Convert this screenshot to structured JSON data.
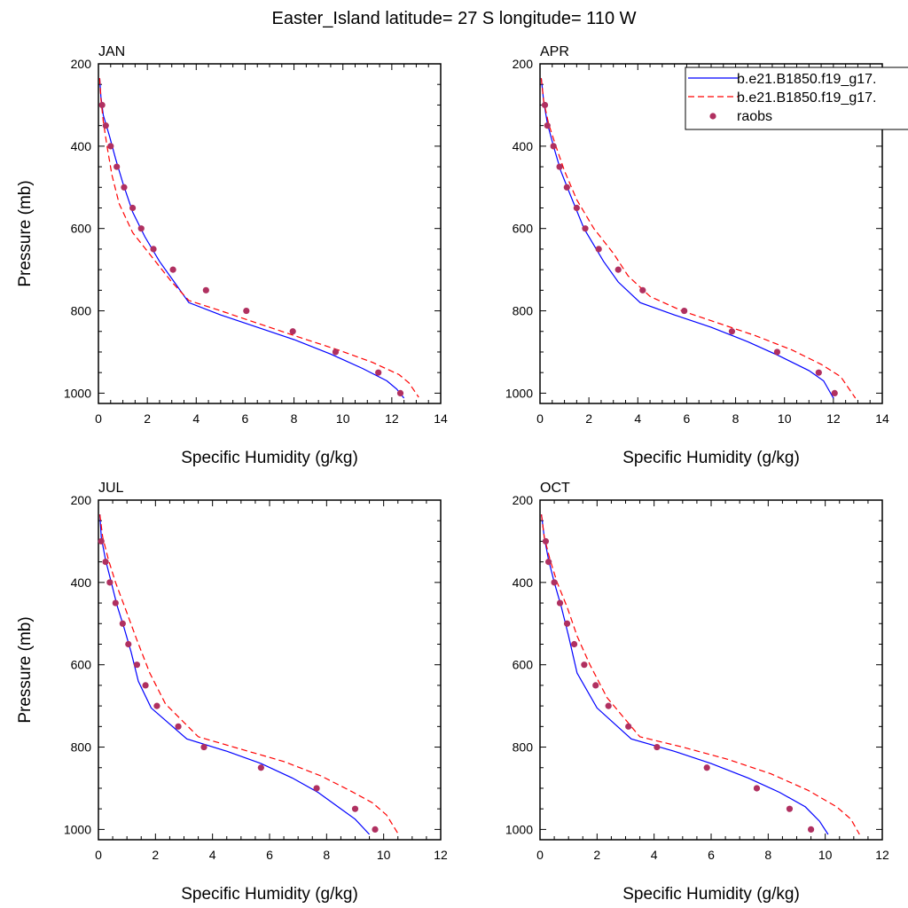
{
  "title": "Easter_Island  latitude= 27 S longitude= 110 W",
  "colors": {
    "model_a": "#0000ff",
    "model_b": "#ff0000",
    "raobs": "#b03060"
  },
  "legend": {
    "entries": [
      {
        "label": "b.e21.B1850.f19_g17.",
        "style": "solid",
        "color": "#0000ff"
      },
      {
        "label": "b.e21.B1850.f19_g17.",
        "style": "dashed",
        "color": "#ff0000"
      },
      {
        "label": "raobs",
        "style": "marker",
        "color": "#b03060"
      }
    ]
  },
  "chart_data": [
    {
      "type": "line",
      "panel": "JAN",
      "xlabel": "Specific Humidity (g/kg)",
      "ylabel": "Pressure (mb)",
      "xlim": [
        0,
        14
      ],
      "ylim": [
        200,
        1025
      ],
      "y_reversed": true,
      "x_ticks": [
        0,
        2,
        4,
        6,
        8,
        10,
        12,
        14
      ],
      "y_ticks": [
        200,
        400,
        600,
        800,
        1000
      ],
      "series": [
        {
          "name": "b.e21.B1850.f19_g17.",
          "style": "solid",
          "color": "#0000ff",
          "points": [
            [
              0.05,
              235
            ],
            [
              0.1,
              280
            ],
            [
              0.2,
              325
            ],
            [
              0.45,
              375
            ],
            [
              0.7,
              430
            ],
            [
              1.0,
              490
            ],
            [
              1.4,
              560
            ],
            [
              1.9,
              620
            ],
            [
              2.5,
              680
            ],
            [
              3.1,
              730
            ],
            [
              3.7,
              780
            ],
            [
              5.0,
              810
            ],
            [
              6.5,
              840
            ],
            [
              8.0,
              870
            ],
            [
              9.5,
              905
            ],
            [
              10.8,
              940
            ],
            [
              11.8,
              970
            ],
            [
              12.2,
              990
            ],
            [
              12.5,
              1012
            ]
          ]
        },
        {
          "name": "b.e21.B1850.f19_g17.",
          "style": "dashed",
          "color": "#ff0000",
          "points": [
            [
              0.05,
              235
            ],
            [
              0.1,
              285
            ],
            [
              0.2,
              340
            ],
            [
              0.35,
              400
            ],
            [
              0.55,
              470
            ],
            [
              0.85,
              540
            ],
            [
              1.4,
              610
            ],
            [
              2.2,
              670
            ],
            [
              3.0,
              730
            ],
            [
              3.7,
              775
            ],
            [
              5.0,
              800
            ],
            [
              6.5,
              830
            ],
            [
              8.0,
              860
            ],
            [
              9.8,
              895
            ],
            [
              11.2,
              925
            ],
            [
              12.3,
              955
            ],
            [
              12.7,
              975
            ],
            [
              13.1,
              1010
            ]
          ]
        },
        {
          "name": "raobs",
          "style": "marker",
          "color": "#b03060",
          "points": [
            [
              0.15,
              300
            ],
            [
              0.3,
              350
            ],
            [
              0.5,
              400
            ],
            [
              0.75,
              450
            ],
            [
              1.05,
              500
            ],
            [
              1.4,
              550
            ],
            [
              1.75,
              600
            ],
            [
              2.25,
              650
            ],
            [
              3.05,
              700
            ],
            [
              4.4,
              750
            ],
            [
              6.05,
              800
            ],
            [
              7.95,
              850
            ],
            [
              9.7,
              900
            ],
            [
              11.45,
              950
            ],
            [
              12.35,
              1000
            ]
          ]
        }
      ]
    },
    {
      "type": "line",
      "panel": "APR",
      "xlabel": "Specific Humidity (g/kg)",
      "ylabel": "",
      "xlim": [
        0,
        14
      ],
      "ylim": [
        200,
        1025
      ],
      "y_reversed": true,
      "x_ticks": [
        0,
        2,
        4,
        6,
        8,
        10,
        12,
        14
      ],
      "y_ticks": [
        200,
        400,
        600,
        800,
        1000
      ],
      "series": [
        {
          "name": "b.e21.B1850.f19_g17.",
          "style": "solid",
          "color": "#0000ff",
          "points": [
            [
              0.05,
              235
            ],
            [
              0.15,
              290
            ],
            [
              0.3,
              345
            ],
            [
              0.55,
              400
            ],
            [
              0.85,
              460
            ],
            [
              1.25,
              520
            ],
            [
              1.8,
              600
            ],
            [
              2.6,
              680
            ],
            [
              3.2,
              730
            ],
            [
              4.1,
              780
            ],
            [
              5.5,
              810
            ],
            [
              7.0,
              840
            ],
            [
              8.5,
              875
            ],
            [
              9.8,
              910
            ],
            [
              11.0,
              945
            ],
            [
              11.6,
              970
            ],
            [
              12.0,
              1012
            ]
          ]
        },
        {
          "name": "b.e21.B1850.f19_g17.",
          "style": "dashed",
          "color": "#ff0000",
          "points": [
            [
              0.05,
              235
            ],
            [
              0.15,
              290
            ],
            [
              0.35,
              345
            ],
            [
              0.65,
              400
            ],
            [
              1.0,
              460
            ],
            [
              1.5,
              530
            ],
            [
              2.2,
              600
            ],
            [
              3.0,
              660
            ],
            [
              3.6,
              715
            ],
            [
              4.5,
              765
            ],
            [
              5.8,
              800
            ],
            [
              7.3,
              830
            ],
            [
              8.8,
              860
            ],
            [
              10.3,
              895
            ],
            [
              11.5,
              930
            ],
            [
              12.3,
              960
            ],
            [
              12.9,
              1012
            ]
          ]
        },
        {
          "name": "raobs",
          "style": "marker",
          "color": "#b03060",
          "points": [
            [
              0.2,
              300
            ],
            [
              0.3,
              350
            ],
            [
              0.55,
              400
            ],
            [
              0.8,
              450
            ],
            [
              1.1,
              500
            ],
            [
              1.5,
              550
            ],
            [
              1.85,
              600
            ],
            [
              2.4,
              650
            ],
            [
              3.2,
              700
            ],
            [
              4.2,
              750
            ],
            [
              5.9,
              800
            ],
            [
              7.85,
              850
            ],
            [
              9.7,
              900
            ],
            [
              11.4,
              950
            ],
            [
              12.05,
              1000
            ]
          ]
        }
      ]
    },
    {
      "type": "line",
      "panel": "JUL",
      "xlabel": "Specific Humidity (g/kg)",
      "ylabel": "Pressure (mb)",
      "xlim": [
        0,
        12
      ],
      "ylim": [
        200,
        1025
      ],
      "y_reversed": true,
      "x_ticks": [
        0,
        2,
        4,
        6,
        8,
        10,
        12
      ],
      "y_ticks": [
        200,
        400,
        600,
        800,
        1000
      ],
      "series": [
        {
          "name": "b.e21.B1850.f19_g17.",
          "style": "solid",
          "color": "#0000ff",
          "points": [
            [
              0.05,
              235
            ],
            [
              0.1,
              290
            ],
            [
              0.25,
              345
            ],
            [
              0.45,
              400
            ],
            [
              0.65,
              455
            ],
            [
              0.9,
              510
            ],
            [
              1.15,
              570
            ],
            [
              1.4,
              640
            ],
            [
              1.85,
              705
            ],
            [
              3.1,
              780
            ],
            [
              4.5,
              810
            ],
            [
              5.7,
              840
            ],
            [
              6.8,
              875
            ],
            [
              7.7,
              910
            ],
            [
              8.4,
              945
            ],
            [
              9.0,
              975
            ],
            [
              9.5,
              1012
            ]
          ]
        },
        {
          "name": "b.e21.B1850.f19_g17.",
          "style": "dashed",
          "color": "#ff0000",
          "points": [
            [
              0.05,
              235
            ],
            [
              0.15,
              290
            ],
            [
              0.35,
              345
            ],
            [
              0.6,
              400
            ],
            [
              0.95,
              465
            ],
            [
              1.35,
              540
            ],
            [
              1.8,
              620
            ],
            [
              2.35,
              695
            ],
            [
              3.5,
              775
            ],
            [
              5.0,
              805
            ],
            [
              6.5,
              835
            ],
            [
              7.8,
              870
            ],
            [
              8.8,
              905
            ],
            [
              9.6,
              935
            ],
            [
              10.1,
              965
            ],
            [
              10.5,
              1010
            ]
          ]
        },
        {
          "name": "raobs",
          "style": "marker",
          "color": "#b03060",
          "points": [
            [
              0.1,
              300
            ],
            [
              0.25,
              350
            ],
            [
              0.4,
              400
            ],
            [
              0.6,
              450
            ],
            [
              0.85,
              500
            ],
            [
              1.05,
              550
            ],
            [
              1.35,
              600
            ],
            [
              1.65,
              650
            ],
            [
              2.05,
              700
            ],
            [
              2.8,
              750
            ],
            [
              3.7,
              800
            ],
            [
              5.7,
              850
            ],
            [
              7.65,
              900
            ],
            [
              9.0,
              950
            ],
            [
              9.7,
              1000
            ]
          ]
        }
      ]
    },
    {
      "type": "line",
      "panel": "OCT",
      "xlabel": "Specific Humidity (g/kg)",
      "ylabel": "",
      "xlim": [
        0,
        12
      ],
      "ylim": [
        200,
        1025
      ],
      "y_reversed": true,
      "x_ticks": [
        0,
        2,
        4,
        6,
        8,
        10,
        12
      ],
      "y_ticks": [
        200,
        400,
        600,
        800,
        1000
      ],
      "series": [
        {
          "name": "b.e21.B1850.f19_g17.",
          "style": "solid",
          "color": "#0000ff",
          "points": [
            [
              0.05,
              235
            ],
            [
              0.15,
              290
            ],
            [
              0.3,
              345
            ],
            [
              0.5,
              400
            ],
            [
              0.75,
              460
            ],
            [
              1.0,
              530
            ],
            [
              1.3,
              620
            ],
            [
              2.0,
              705
            ],
            [
              3.2,
              780
            ],
            [
              4.7,
              810
            ],
            [
              6.0,
              840
            ],
            [
              7.3,
              875
            ],
            [
              8.4,
              910
            ],
            [
              9.3,
              945
            ],
            [
              9.8,
              980
            ],
            [
              10.1,
              1012
            ]
          ]
        },
        {
          "name": "b.e21.B1850.f19_g17.",
          "style": "dashed",
          "color": "#ff0000",
          "points": [
            [
              0.05,
              235
            ],
            [
              0.15,
              290
            ],
            [
              0.35,
              345
            ],
            [
              0.6,
              400
            ],
            [
              0.95,
              460
            ],
            [
              1.3,
              530
            ],
            [
              1.75,
              600
            ],
            [
              2.35,
              680
            ],
            [
              3.5,
              775
            ],
            [
              5.0,
              800
            ],
            [
              6.6,
              830
            ],
            [
              8.1,
              865
            ],
            [
              9.4,
              905
            ],
            [
              10.4,
              945
            ],
            [
              10.9,
              975
            ],
            [
              11.2,
              1012
            ]
          ]
        },
        {
          "name": "raobs",
          "style": "marker",
          "color": "#b03060",
          "points": [
            [
              0.2,
              300
            ],
            [
              0.3,
              350
            ],
            [
              0.5,
              400
            ],
            [
              0.7,
              450
            ],
            [
              0.95,
              500
            ],
            [
              1.2,
              550
            ],
            [
              1.55,
              600
            ],
            [
              1.95,
              650
            ],
            [
              2.4,
              700
            ],
            [
              3.1,
              750
            ],
            [
              4.1,
              800
            ],
            [
              5.85,
              850
            ],
            [
              7.6,
              900
            ],
            [
              8.75,
              950
            ],
            [
              9.5,
              1000
            ]
          ]
        }
      ]
    }
  ]
}
